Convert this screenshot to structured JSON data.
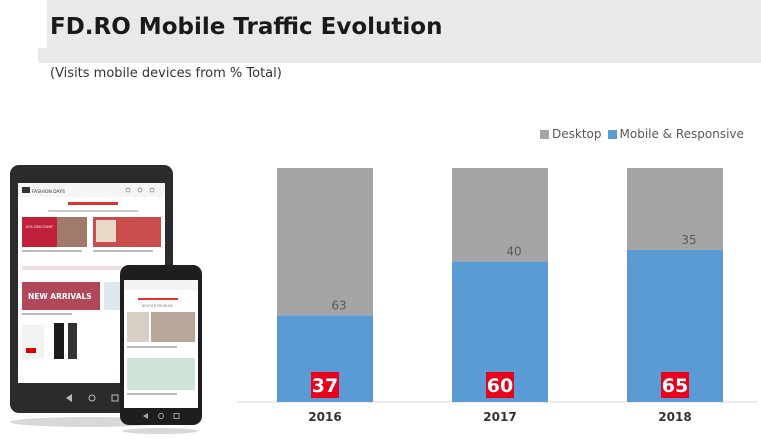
{
  "header": {
    "title": "FD.RO Mobile Traffic Evolution",
    "subtitle": "(Visits mobile devices from % Total)"
  },
  "illustration": {
    "tablet_brand": "FASHION DAYS",
    "banner_text": "NEW ARRIVALS",
    "discount_text": "10% DISCOUNT",
    "sale_tag": "SALE",
    "phone_section": "NOUTĂȚI PRODUSE"
  },
  "chart_data": {
    "type": "bar",
    "stacked": true,
    "percent": true,
    "categories": [
      "2016",
      "2017",
      "2018"
    ],
    "series": [
      {
        "name": "Mobile & Responsive",
        "values": [
          37,
          60,
          65
        ],
        "color": "#5b9bd5"
      },
      {
        "name": "Desktop",
        "values": [
          63,
          40,
          35
        ],
        "color": "#a5a5a5"
      }
    ],
    "legend_position": "top-right",
    "grid": false,
    "ylim": [
      0,
      100
    ],
    "mobile_label_bg": "#e8001c",
    "legend": [
      "Desktop",
      "Mobile & Responsive"
    ]
  }
}
